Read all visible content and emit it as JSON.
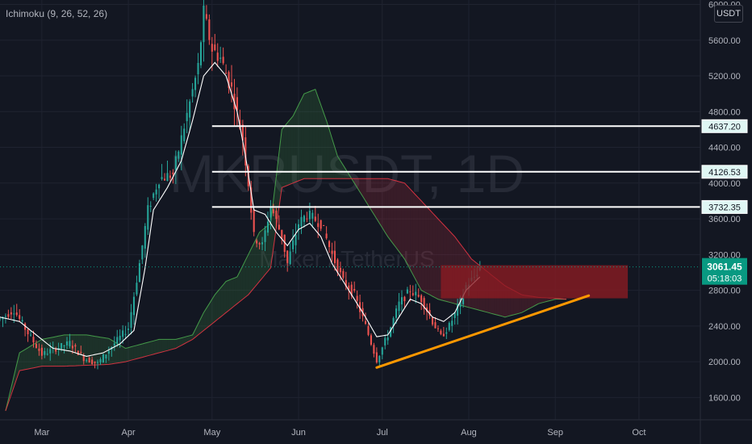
{
  "indicator": {
    "label": "Ichimoku (9, 26, 52, 26)"
  },
  "currency_badge": "USDT",
  "watermark": {
    "symbol": "MKRUSDT, 1D",
    "name": "Maker / TetherUS"
  },
  "colors": {
    "background": "#131722",
    "grid": "#1f2330",
    "up_candle": "#26a69a",
    "down_candle": "#ef5350",
    "conversion_line": "#ffffff",
    "kumo_bull": "#4caf50",
    "kumo_bear": "#f23645",
    "zone": "#8c1b22",
    "horizontal_levels": "#ffffff",
    "trendline": "#ff9800",
    "axis_text": "#b2b5be",
    "last_price_label": "#089981",
    "level_label_bg": "#e0f7f4"
  },
  "chart_data": {
    "type": "candlestick",
    "symbol": "MKRUSDT",
    "timeframe": "1D",
    "y_axis": {
      "ticks": [
        1600,
        2000,
        2400,
        2800,
        3200,
        3600,
        4000,
        4400,
        4800,
        5200,
        5600,
        6000
      ],
      "tick_labels": [
        "1600.00",
        "2000.00",
        "2400.00",
        "2800.00",
        "3200.00",
        "3600.00",
        "4000.00",
        "4400.00",
        "4800.00",
        "5200.00",
        "5600.00",
        "6000.00"
      ],
      "range": [
        1350,
        6050
      ]
    },
    "x_axis": {
      "labels": [
        "Mar",
        "Apr",
        "May",
        "Jun",
        "Jul",
        "Aug",
        "Sep",
        "Oct"
      ],
      "label_days": [
        0,
        31,
        61,
        92,
        122,
        153,
        184,
        214
      ],
      "range": [
        -15,
        236
      ]
    },
    "last_price": {
      "value": "3061.45",
      "countdown": "05:18:03",
      "price": 3061.45
    },
    "horizontal_levels": [
      {
        "price": 4637.2,
        "label": "4637.20",
        "from_day": 61
      },
      {
        "price": 4126.53,
        "label": "4126.53",
        "from_day": 61
      },
      {
        "price": 3732.35,
        "label": "3732.35",
        "from_day": 61
      }
    ],
    "zone": {
      "from_day": 143,
      "to_day": 210,
      "high": 3080,
      "low": 2710
    },
    "trendline": {
      "from": {
        "day": 120,
        "price": 1935
      },
      "to": {
        "day": 196,
        "price": 2740
      }
    },
    "price_anchors": [
      [
        -15,
        2480
      ],
      [
        -10,
        2580
      ],
      [
        -5,
        2320
      ],
      [
        0,
        2080
      ],
      [
        5,
        2150
      ],
      [
        10,
        2210
      ],
      [
        15,
        2040
      ],
      [
        20,
        1980
      ],
      [
        25,
        2170
      ],
      [
        31,
        2380
      ],
      [
        35,
        3100
      ],
      [
        38,
        3700
      ],
      [
        42,
        4050
      ],
      [
        47,
        4100
      ],
      [
        50,
        4500
      ],
      [
        53,
        4900
      ],
      [
        56,
        5300
      ],
      [
        58,
        5900
      ],
      [
        61,
        5500
      ],
      [
        64,
        5400
      ],
      [
        68,
        5050
      ],
      [
        72,
        4500
      ],
      [
        74,
        4000
      ],
      [
        76,
        3400
      ],
      [
        79,
        3300
      ],
      [
        82,
        3750
      ],
      [
        86,
        3400
      ],
      [
        88,
        3100
      ],
      [
        92,
        3550
      ],
      [
        95,
        3650
      ],
      [
        100,
        3550
      ],
      [
        104,
        3200
      ],
      [
        108,
        2900
      ],
      [
        112,
        2750
      ],
      [
        116,
        2400
      ],
      [
        120,
        2020
      ],
      [
        124,
        2300
      ],
      [
        128,
        2650
      ],
      [
        132,
        2800
      ],
      [
        136,
        2700
      ],
      [
        140,
        2450
      ],
      [
        143,
        2280
      ],
      [
        146,
        2400
      ],
      [
        149,
        2600
      ],
      [
        152,
        2850
      ],
      [
        155,
        2950
      ],
      [
        157,
        3061
      ]
    ],
    "conversion_anchors": [
      [
        -15,
        2500
      ],
      [
        -8,
        2450
      ],
      [
        -2,
        2300
      ],
      [
        4,
        2150
      ],
      [
        10,
        2120
      ],
      [
        16,
        2060
      ],
      [
        22,
        2100
      ],
      [
        28,
        2200
      ],
      [
        33,
        2350
      ],
      [
        37,
        3050
      ],
      [
        40,
        3700
      ],
      [
        45,
        3950
      ],
      [
        50,
        4250
      ],
      [
        54,
        4700
      ],
      [
        58,
        5200
      ],
      [
        62,
        5350
      ],
      [
        66,
        5200
      ],
      [
        70,
        4800
      ],
      [
        73,
        4300
      ],
      [
        76,
        3700
      ],
      [
        80,
        3650
      ],
      [
        84,
        3450
      ],
      [
        88,
        3300
      ],
      [
        92,
        3480
      ],
      [
        96,
        3550
      ],
      [
        100,
        3400
      ],
      [
        104,
        3100
      ],
      [
        108,
        2900
      ],
      [
        112,
        2700
      ],
      [
        116,
        2500
      ],
      [
        120,
        2280
      ],
      [
        124,
        2300
      ],
      [
        128,
        2500
      ],
      [
        132,
        2700
      ],
      [
        136,
        2650
      ],
      [
        140,
        2500
      ],
      [
        144,
        2450
      ],
      [
        148,
        2550
      ],
      [
        152,
        2800
      ],
      [
        157,
        2950
      ]
    ],
    "kumo_span_a": [
      [
        -13,
        1450
      ],
      [
        -8,
        2100
      ],
      [
        0,
        2250
      ],
      [
        8,
        2300
      ],
      [
        16,
        2300
      ],
      [
        24,
        2260
      ],
      [
        30,
        2150
      ],
      [
        36,
        2200
      ],
      [
        42,
        2250
      ],
      [
        48,
        2250
      ],
      [
        54,
        2300
      ],
      [
        58,
        2550
      ],
      [
        62,
        2750
      ],
      [
        66,
        2900
      ],
      [
        70,
        2950
      ],
      [
        74,
        3200
      ],
      [
        78,
        3450
      ],
      [
        82,
        3550
      ],
      [
        86,
        4600
      ],
      [
        90,
        4750
      ],
      [
        94,
        5000
      ],
      [
        98,
        5050
      ],
      [
        102,
        4700
      ],
      [
        106,
        4300
      ],
      [
        112,
        4000
      ],
      [
        118,
        3700
      ],
      [
        124,
        3400
      ],
      [
        130,
        3150
      ],
      [
        136,
        2800
      ],
      [
        142,
        2700
      ],
      [
        148,
        2650
      ],
      [
        154,
        2600
      ],
      [
        160,
        2550
      ],
      [
        166,
        2500
      ],
      [
        172,
        2550
      ],
      [
        178,
        2650
      ],
      [
        184,
        2700
      ],
      [
        188,
        2700
      ]
    ],
    "kumo_span_b": [
      [
        -13,
        1450
      ],
      [
        -8,
        1900
      ],
      [
        0,
        1950
      ],
      [
        8,
        1950
      ],
      [
        16,
        1960
      ],
      [
        24,
        1970
      ],
      [
        30,
        2000
      ],
      [
        36,
        2050
      ],
      [
        42,
        2100
      ],
      [
        48,
        2150
      ],
      [
        54,
        2250
      ],
      [
        58,
        2350
      ],
      [
        62,
        2450
      ],
      [
        66,
        2550
      ],
      [
        70,
        2650
      ],
      [
        74,
        2750
      ],
      [
        78,
        2900
      ],
      [
        82,
        3050
      ],
      [
        86,
        3950
      ],
      [
        90,
        4000
      ],
      [
        94,
        4050
      ],
      [
        98,
        4050
      ],
      [
        102,
        4050
      ],
      [
        106,
        4050
      ],
      [
        112,
        4050
      ],
      [
        118,
        4050
      ],
      [
        124,
        4050
      ],
      [
        130,
        4000
      ],
      [
        136,
        3800
      ],
      [
        142,
        3600
      ],
      [
        148,
        3400
      ],
      [
        154,
        3150
      ],
      [
        160,
        3000
      ],
      [
        166,
        2850
      ],
      [
        172,
        2750
      ],
      [
        178,
        2720
      ],
      [
        184,
        2710
      ],
      [
        188,
        2700
      ]
    ]
  }
}
